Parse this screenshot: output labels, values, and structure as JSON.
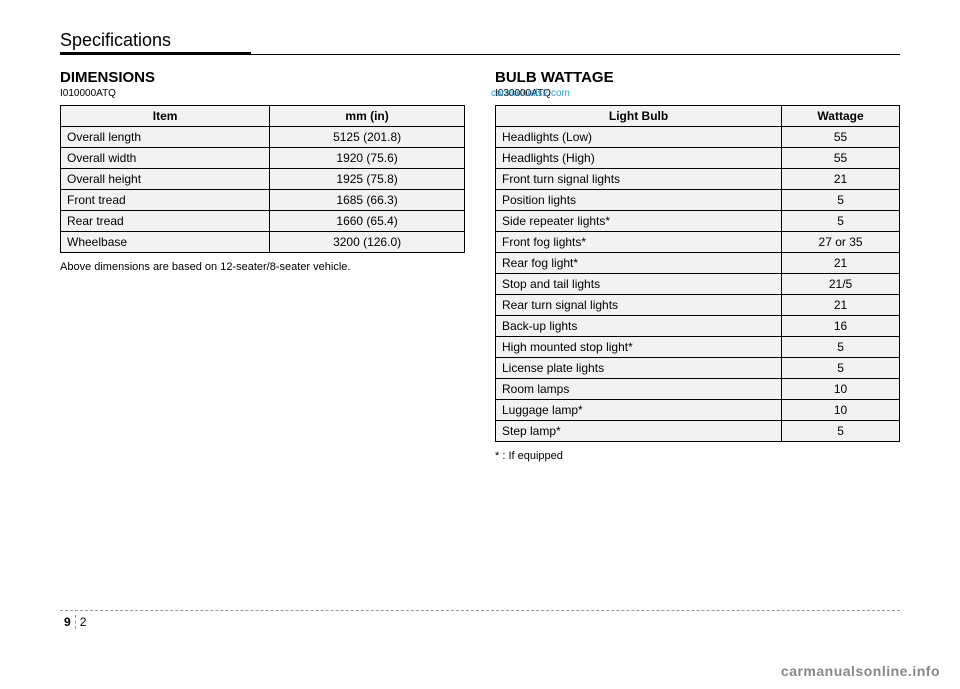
{
  "header": {
    "title": "Specifications"
  },
  "watermark": "carmanuals2.com",
  "dimensions": {
    "title": "DIMENSIONS",
    "code": "I010000ATQ",
    "columns": [
      "Item",
      "mm (in)"
    ],
    "rows": [
      [
        "Overall length",
        "5125 (201.8)"
      ],
      [
        "Overall width",
        "1920 (75.6)"
      ],
      [
        "Overall height",
        "1925 (75.8)"
      ],
      [
        "Front tread",
        "1685 (66.3)"
      ],
      [
        "Rear tread",
        "1660 (65.4)"
      ],
      [
        "Wheelbase",
        "3200 (126.0)"
      ]
    ],
    "note": "Above dimensions are based on 12-seater/8-seater vehicle."
  },
  "bulbs": {
    "title": "BULB WATTAGE",
    "code": "I030000ATQ",
    "columns": [
      "Light Bulb",
      "Wattage"
    ],
    "rows": [
      [
        "Headlights (Low)",
        "55"
      ],
      [
        "Headlights (High)",
        "55"
      ],
      [
        "Front turn signal lights",
        "21"
      ],
      [
        "Position lights",
        "5"
      ],
      [
        "Side repeater lights*",
        "5"
      ],
      [
        "Front fog lights*",
        "27 or 35"
      ],
      [
        "Rear fog light*",
        "21"
      ],
      [
        "Stop and tail lights",
        "21/5"
      ],
      [
        "Rear turn signal lights",
        "21"
      ],
      [
        "Back-up lights",
        "16"
      ],
      [
        "High mounted stop light*",
        "5"
      ],
      [
        "License plate lights",
        "5"
      ],
      [
        "Room lamps",
        "10"
      ],
      [
        "Luggage lamp*",
        "10"
      ],
      [
        "Step lamp*",
        "5"
      ]
    ],
    "note": "* : If equipped"
  },
  "footer": {
    "section": "9",
    "page": "2"
  },
  "brand": "carmanualsonline.info"
}
